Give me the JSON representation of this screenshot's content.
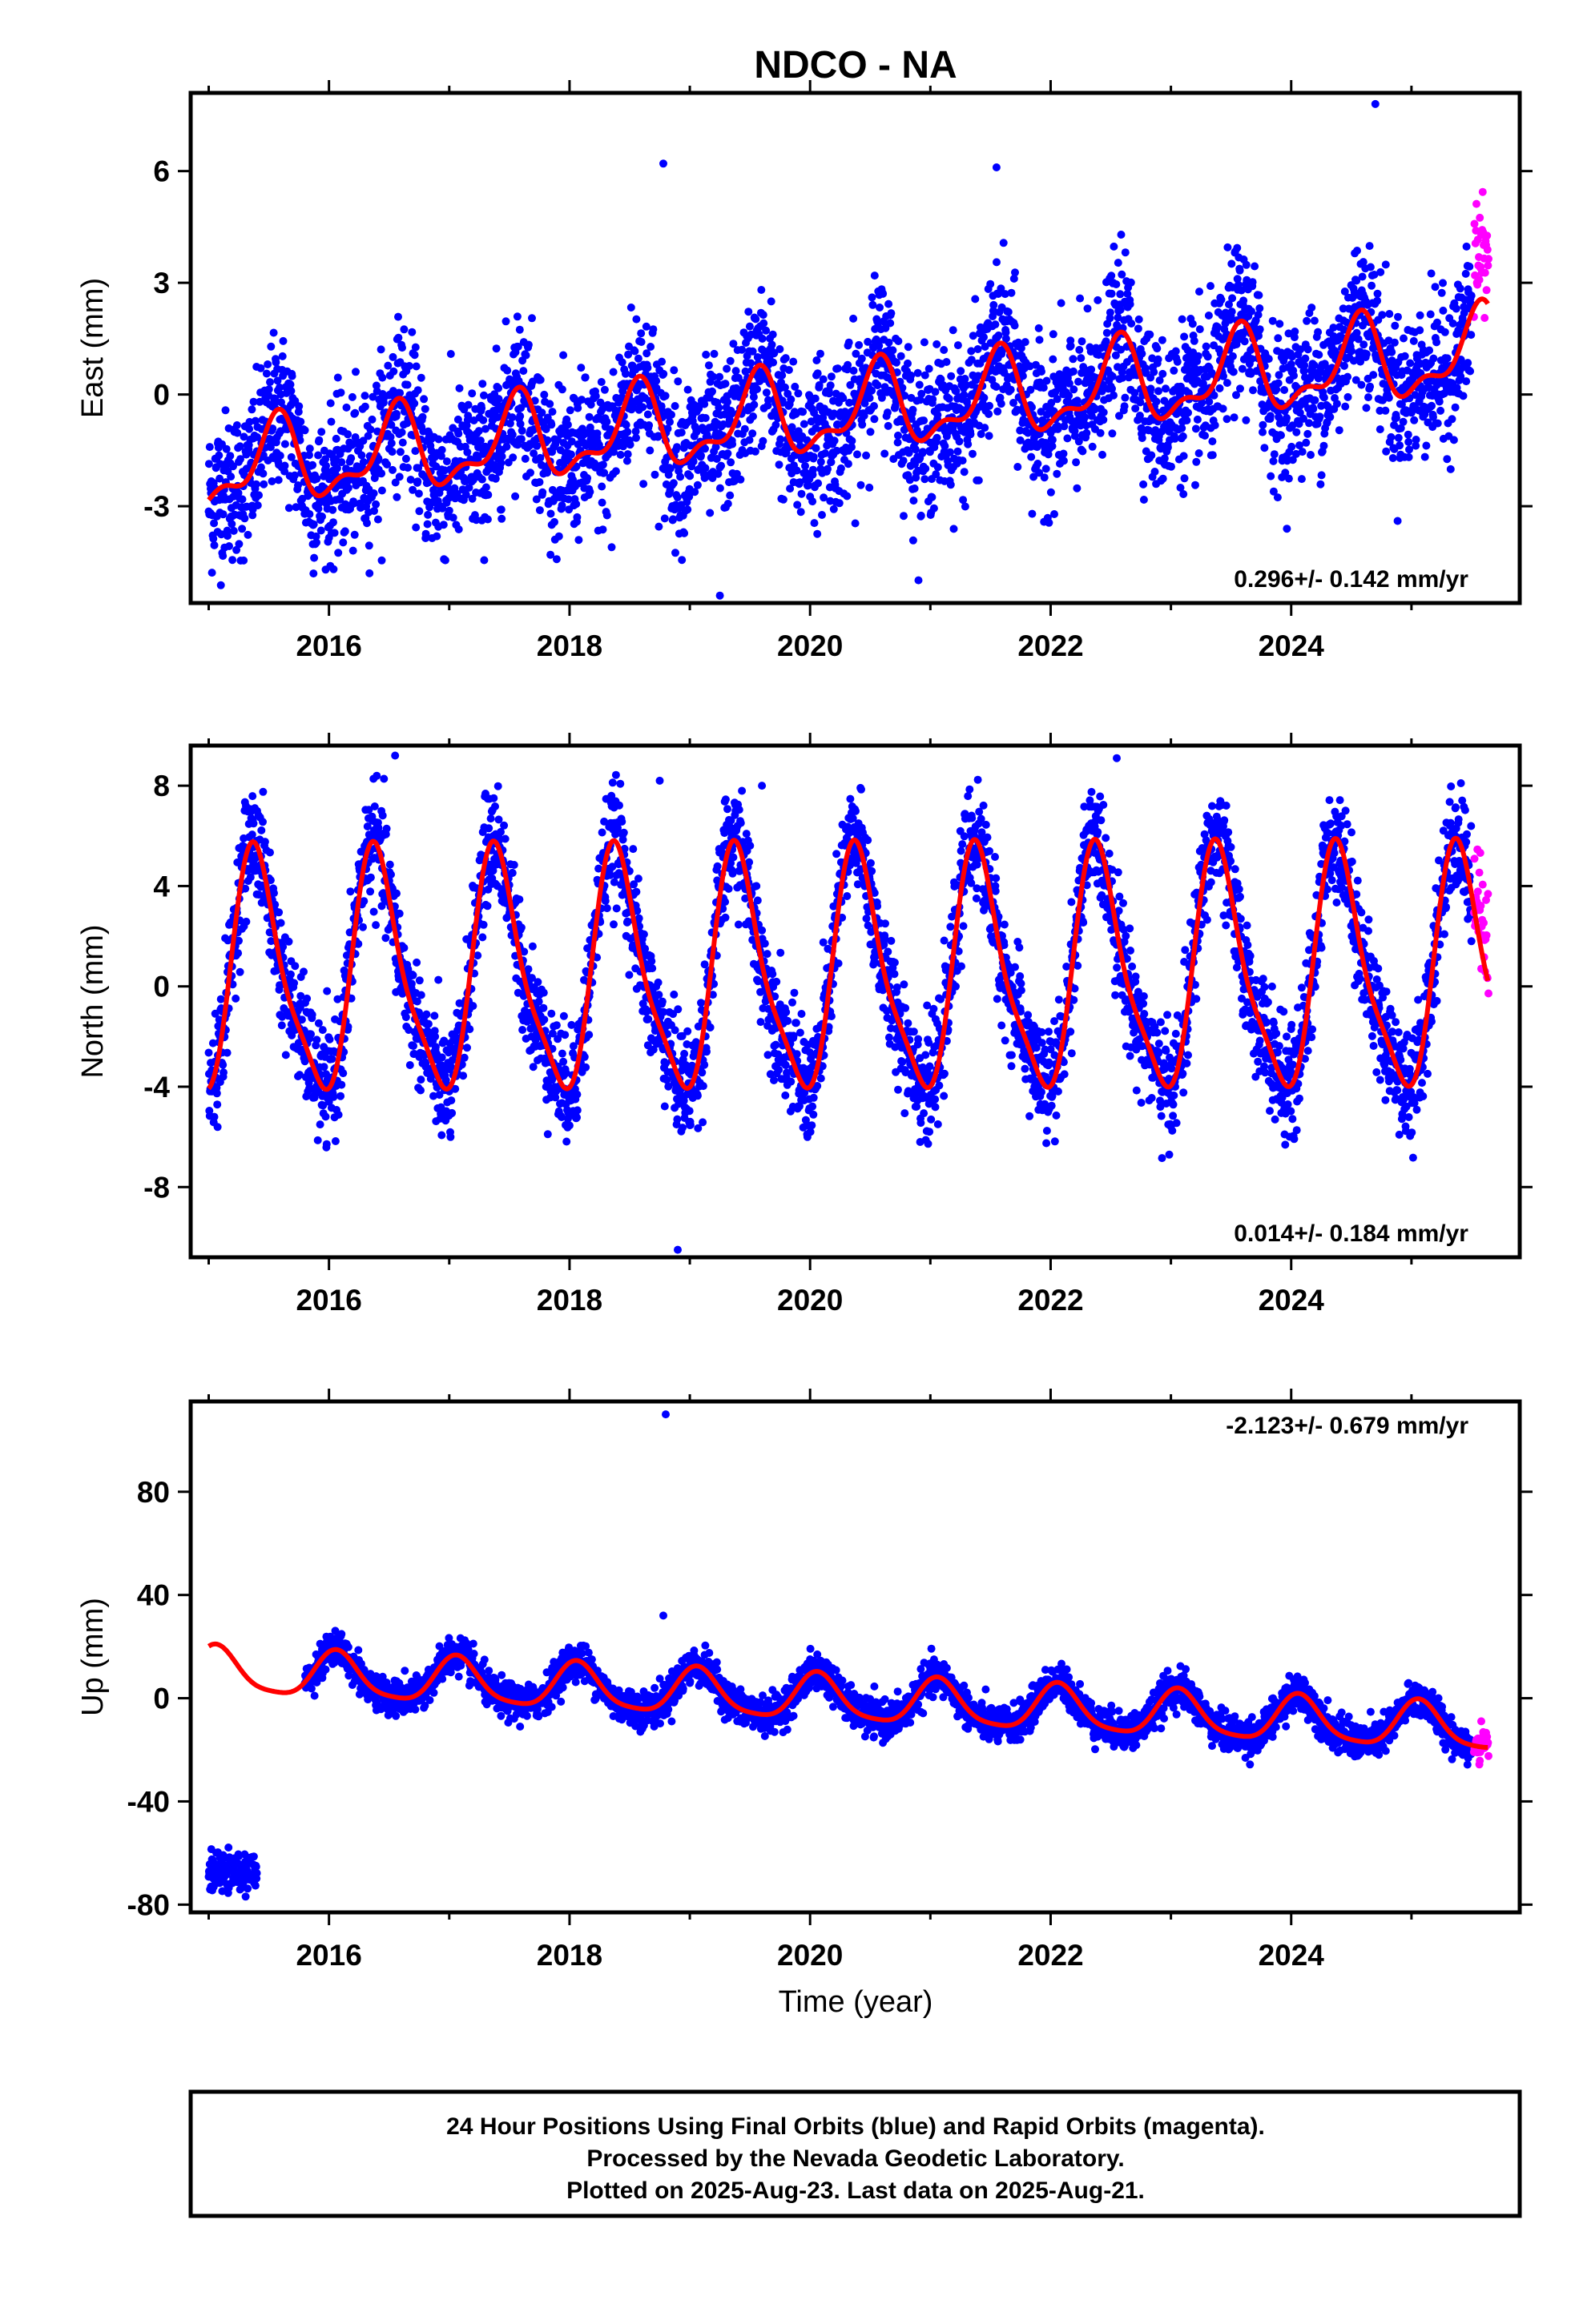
{
  "title": "NDCO - NA",
  "x_axis": {
    "label": "Time (year)",
    "range": [
      2014.85,
      2025.9
    ],
    "major_ticks": [
      2016,
      2018,
      2020,
      2022,
      2024
    ],
    "major_tick_labels": [
      "2016",
      "2018",
      "2020",
      "2022",
      "2024"
    ],
    "minor_ticks": [
      2015,
      2017,
      2019,
      2021,
      2023,
      2025
    ]
  },
  "colors": {
    "final_orbits": "#0000ff",
    "rapid_orbits": "#ff00ff",
    "model_fit": "#ff0000",
    "frame": "#000000"
  },
  "chart_data": [
    {
      "type": "scatter",
      "id": "east",
      "ylabel": "East (mm)",
      "ylim": [
        -5.6,
        8.1
      ],
      "yticks": [
        -3,
        0,
        3,
        6
      ],
      "ytick_labels": [
        "-3",
        "0",
        "3",
        "6"
      ],
      "rate_text": "0.296+/- 0.142 mm/yr",
      "rate_position": "bottom-right",
      "model": {
        "offset": -0.55,
        "trend_per_year": 0.296,
        "seasonal": [
          {
            "period_years": 1,
            "sin": -0.35,
            "cos": -0.95
          },
          {
            "period_years": 0.5,
            "sin": 0.45,
            "cos": 0.15
          }
        ]
      },
      "noise_sd": 1.0,
      "series": [
        {
          "name": "Final Orbits",
          "color": "#0000ff",
          "time_range": [
            2015.0,
            2025.5
          ]
        },
        {
          "name": "Rapid Orbits",
          "color": "#ff00ff",
          "time_range": [
            2025.52,
            2025.64
          ]
        }
      ],
      "outliers": [
        [
          2018.78,
          6.2
        ],
        [
          2019.25,
          -5.4
        ],
        [
          2024.7,
          7.8
        ],
        [
          2018.35,
          -4.1
        ],
        [
          2021.55,
          6.1
        ]
      ]
    },
    {
      "type": "scatter",
      "id": "north",
      "ylabel": "North (mm)",
      "ylim": [
        -10.8,
        9.6
      ],
      "yticks": [
        -8,
        -4,
        0,
        4,
        8
      ],
      "ytick_labels": [
        "-8",
        "-4",
        "0",
        "4",
        "8"
      ],
      "rate_text": "0.014+/- 0.184 mm/yr",
      "rate_position": "bottom-right",
      "model": {
        "offset": 0.4,
        "trend_per_year": 0.014,
        "seasonal": [
          {
            "period_years": 1,
            "sin": 2.6,
            "cos": -3.8
          },
          {
            "period_years": 0.5,
            "sin": -0.9,
            "cos": -0.6
          }
        ]
      },
      "noise_sd": 1.1,
      "series": [
        {
          "name": "Final Orbits",
          "color": "#0000ff",
          "time_range": [
            2015.0,
            2025.5
          ]
        },
        {
          "name": "Rapid Orbits",
          "color": "#ff00ff",
          "time_range": [
            2025.52,
            2025.64
          ]
        }
      ],
      "outliers": [
        [
          2018.9,
          -10.5
        ],
        [
          2018.75,
          8.2
        ],
        [
          2016.55,
          9.2
        ],
        [
          2022.55,
          9.1
        ],
        [
          2019.6,
          8.0
        ]
      ]
    },
    {
      "type": "scatter",
      "id": "up",
      "ylabel": "Up (mm)",
      "ylim": [
        -83,
        115
      ],
      "yticks": [
        -80,
        -40,
        0,
        40,
        80
      ],
      "ytick_labels": [
        "-80",
        "-40",
        "0",
        "40",
        "80"
      ],
      "rate_text": "-2.123+/- 0.679 mm/yr",
      "rate_position": "top-right",
      "model": {
        "offset": 0.0,
        "trend_per_year": -2.123,
        "seasonal": [
          {
            "period_years": 1,
            "sin": 3.5,
            "cos": 8.0
          },
          {
            "period_years": 0.5,
            "sin": 1.0,
            "cos": 1.5
          }
        ]
      },
      "noise_sd": 3.5,
      "early_offset": {
        "time_range": [
          2015.0,
          2015.4
        ],
        "mean": -68,
        "spread": 7
      },
      "series": [
        {
          "name": "Final Orbits",
          "color": "#0000ff",
          "time_range": [
            2015.8,
            2025.5
          ]
        },
        {
          "name": "Rapid Orbits",
          "color": "#ff00ff",
          "time_range": [
            2025.52,
            2025.64
          ]
        }
      ],
      "outliers": [
        [
          2018.8,
          110
        ],
        [
          2018.78,
          32
        ]
      ]
    }
  ],
  "footer": {
    "line1": "24 Hour Positions Using Final Orbits (blue) and Rapid Orbits (magenta).",
    "line2": "Processed by the Nevada Geodetic Laboratory.",
    "line3": "Plotted on 2025-Aug-23. Last data on 2025-Aug-21."
  }
}
